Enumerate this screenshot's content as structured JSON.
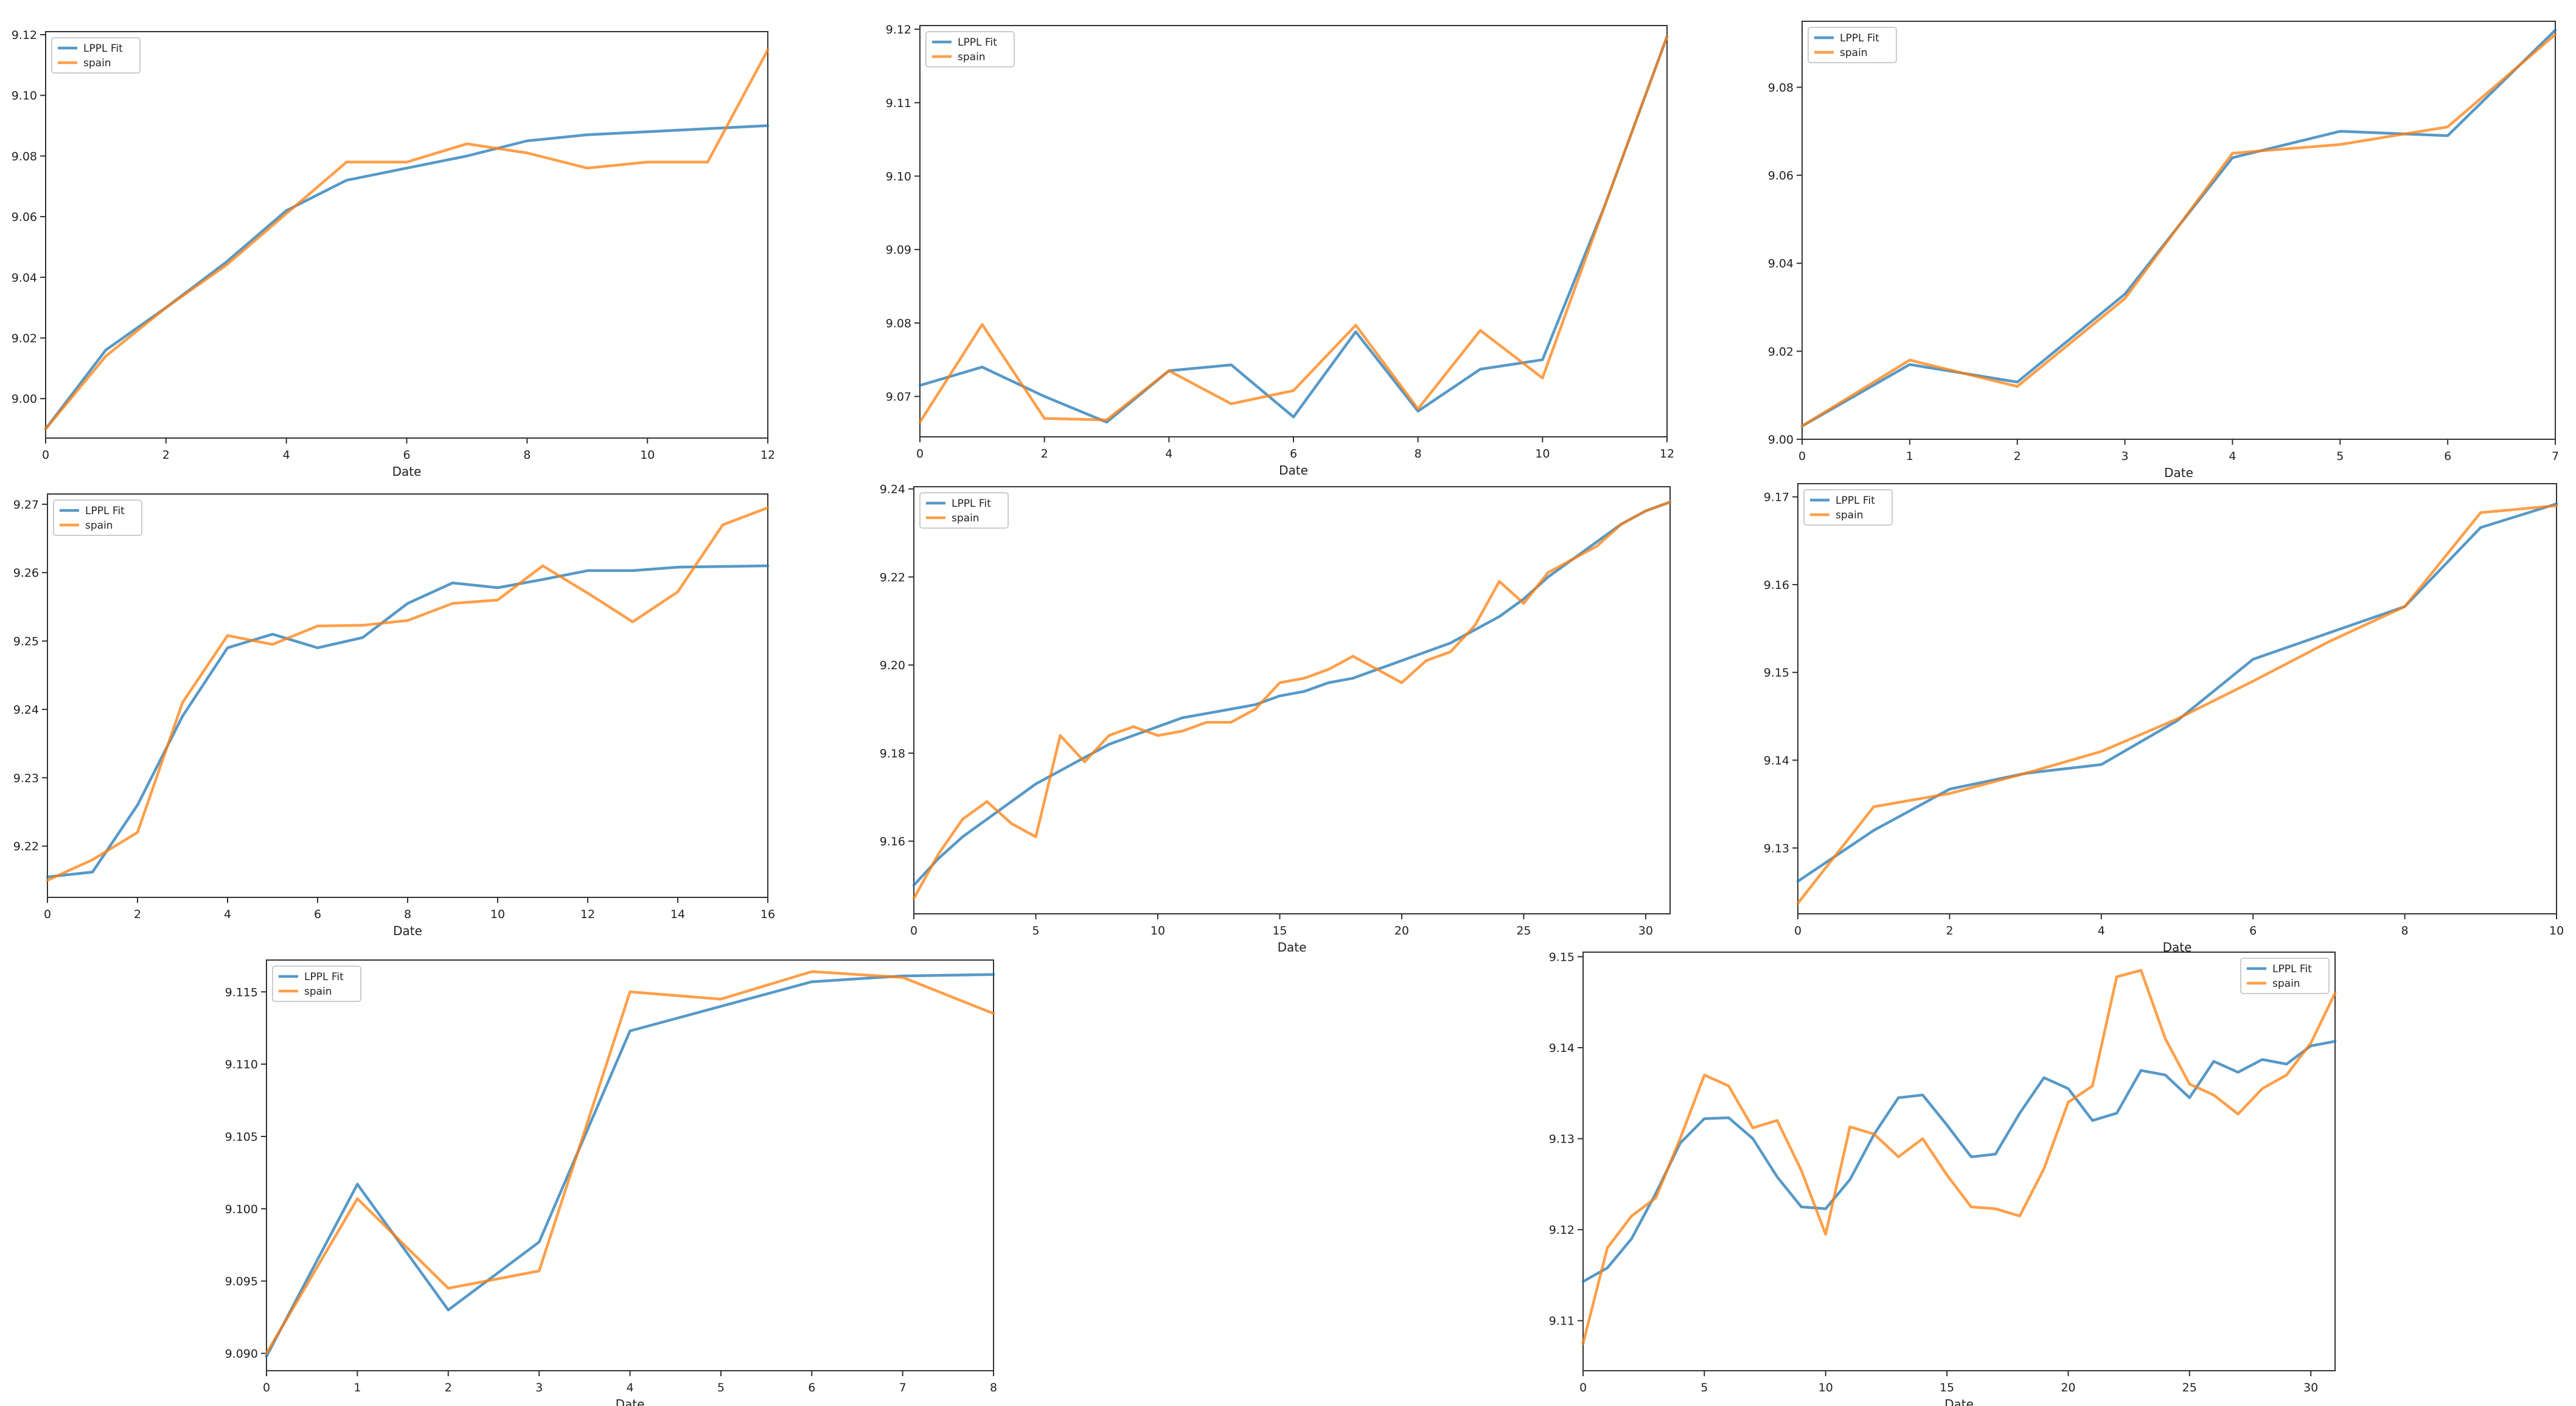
{
  "series_style": {
    "fit_color": "#1f77b4",
    "data_color": "#ff7f0e"
  },
  "chart_data": [
    {
      "type": "line",
      "xlabel": "Date",
      "xlim": [
        0,
        12
      ],
      "ylim": [
        8.987,
        9.121
      ],
      "xticks": [
        0,
        2,
        4,
        6,
        8,
        10,
        12
      ],
      "yticks": [
        9.0,
        9.02,
        9.04,
        9.06,
        9.08,
        9.1,
        9.12
      ],
      "ytick_labels": [
        "9.00",
        "9.02",
        "9.04",
        "9.06",
        "9.08",
        "9.10",
        "9.12"
      ],
      "legend_position": "top-left",
      "series": [
        {
          "name": "LPPL Fit",
          "x": [
            0,
            1,
            2,
            3,
            4,
            5,
            6,
            7,
            8,
            9,
            10,
            11,
            12
          ],
          "y": [
            8.99,
            9.016,
            9.03,
            9.045,
            9.062,
            9.072,
            9.076,
            9.08,
            9.085,
            9.087,
            9.088,
            9.089,
            9.09
          ]
        },
        {
          "name": "spain",
          "x": [
            0,
            1,
            2,
            3,
            4,
            5,
            6,
            7,
            8,
            9,
            10,
            11,
            12
          ],
          "y": [
            8.99,
            9.014,
            9.03,
            9.044,
            9.061,
            9.078,
            9.078,
            9.084,
            9.081,
            9.076,
            9.078,
            9.078,
            9.115
          ]
        }
      ]
    },
    {
      "type": "line",
      "xlabel": "Date",
      "xlim": [
        0,
        12
      ],
      "ylim": [
        9.0645,
        9.1205
      ],
      "xticks": [
        0,
        2,
        4,
        6,
        8,
        10,
        12
      ],
      "yticks": [
        9.07,
        9.08,
        9.09,
        9.1,
        9.11,
        9.12
      ],
      "ytick_labels": [
        "9.07",
        "9.08",
        "9.09",
        "9.10",
        "9.11",
        "9.12"
      ],
      "legend_position": "top-left",
      "series": [
        {
          "name": "LPPL Fit",
          "x": [
            0,
            1,
            2,
            3,
            4,
            5,
            6,
            7,
            8,
            9,
            10,
            11,
            12
          ],
          "y": [
            9.0715,
            9.074,
            9.07,
            9.0665,
            9.0735,
            9.0743,
            9.0672,
            9.0788,
            9.068,
            9.0737,
            9.075,
            9.096,
            9.119
          ]
        },
        {
          "name": "spain",
          "x": [
            0,
            1,
            2,
            3,
            4,
            5,
            6,
            7,
            8,
            9,
            10,
            11,
            12
          ],
          "y": [
            9.0665,
            9.0798,
            9.067,
            9.0668,
            9.0735,
            9.069,
            9.0708,
            9.0797,
            9.0683,
            9.079,
            9.0725,
            9.096,
            9.119
          ]
        }
      ]
    },
    {
      "type": "line",
      "xlabel": "Date",
      "xlim": [
        0,
        7
      ],
      "ylim": [
        9.0,
        9.095
      ],
      "xticks": [
        0,
        1,
        2,
        3,
        4,
        5,
        6,
        7
      ],
      "yticks": [
        9.0,
        9.02,
        9.04,
        9.06,
        9.08
      ],
      "ytick_labels": [
        "9.00",
        "9.02",
        "9.04",
        "9.06",
        "9.08"
      ],
      "legend_position": "top-left",
      "series": [
        {
          "name": "LPPL Fit",
          "x": [
            0,
            1,
            2,
            3,
            4,
            5,
            6,
            7
          ],
          "y": [
            9.003,
            9.017,
            9.013,
            9.033,
            9.064,
            9.07,
            9.069,
            9.093
          ]
        },
        {
          "name": "spain",
          "x": [
            0,
            1,
            2,
            3,
            4,
            5,
            6,
            7
          ],
          "y": [
            9.003,
            9.018,
            9.012,
            9.032,
            9.065,
            9.067,
            9.071,
            9.092
          ]
        }
      ]
    },
    {
      "type": "line",
      "xlabel": "Date",
      "xlim": [
        0,
        16
      ],
      "ylim": [
        9.2125,
        9.2715
      ],
      "xticks": [
        0,
        2,
        4,
        6,
        8,
        10,
        12,
        14,
        16
      ],
      "yticks": [
        9.22,
        9.23,
        9.24,
        9.25,
        9.26,
        9.27
      ],
      "ytick_labels": [
        "9.22",
        "9.23",
        "9.24",
        "9.25",
        "9.26",
        "9.27"
      ],
      "legend_position": "top-left",
      "series": [
        {
          "name": "LPPL Fit",
          "x": [
            0,
            1,
            2,
            3,
            4,
            5,
            6,
            7,
            8,
            9,
            10,
            11,
            12,
            13,
            14,
            15,
            16
          ],
          "y": [
            9.2155,
            9.2162,
            9.226,
            9.239,
            9.249,
            9.251,
            9.249,
            9.2505,
            9.2555,
            9.2585,
            9.2578,
            9.259,
            9.2603,
            9.2603,
            9.2608,
            9.2609,
            9.261
          ]
        },
        {
          "name": "spain",
          "x": [
            0,
            1,
            2,
            3,
            4,
            5,
            6,
            7,
            8,
            9,
            10,
            11,
            12,
            13,
            14,
            15,
            16
          ],
          "y": [
            9.215,
            9.218,
            9.222,
            9.241,
            9.2508,
            9.2495,
            9.2522,
            9.2523,
            9.253,
            9.2555,
            9.256,
            9.261,
            9.257,
            9.2528,
            9.2572,
            9.267,
            9.2695
          ]
        }
      ]
    },
    {
      "type": "line",
      "xlabel": "Date",
      "xlim": [
        0,
        31
      ],
      "ylim": [
        9.1435,
        9.2405
      ],
      "xticks": [
        0,
        5,
        10,
        15,
        20,
        25,
        30
      ],
      "yticks": [
        9.16,
        9.18,
        9.2,
        9.22,
        9.24
      ],
      "ytick_labels": [
        "9.16",
        "9.18",
        "9.20",
        "9.22",
        "9.24"
      ],
      "legend_position": "top-left",
      "series": [
        {
          "name": "LPPL Fit",
          "x": [
            0,
            1,
            2,
            3,
            4,
            5,
            6,
            7,
            8,
            9,
            10,
            11,
            12,
            13,
            14,
            15,
            16,
            17,
            18,
            19,
            20,
            21,
            22,
            23,
            24,
            25,
            26,
            27,
            28,
            29,
            30,
            31
          ],
          "y": [
            9.15,
            9.156,
            9.161,
            9.165,
            9.169,
            9.173,
            9.176,
            9.179,
            9.182,
            9.184,
            9.186,
            9.188,
            9.189,
            9.19,
            9.191,
            9.193,
            9.194,
            9.196,
            9.197,
            9.199,
            9.201,
            9.203,
            9.205,
            9.208,
            9.211,
            9.215,
            9.22,
            9.224,
            9.228,
            9.232,
            9.235,
            9.237
          ]
        },
        {
          "name": "spain",
          "x": [
            0,
            1,
            2,
            3,
            4,
            5,
            6,
            7,
            8,
            9,
            10,
            11,
            12,
            13,
            14,
            15,
            16,
            17,
            18,
            19,
            20,
            21,
            22,
            23,
            24,
            25,
            26,
            27,
            28,
            29,
            30,
            31
          ],
          "y": [
            9.147,
            9.157,
            9.165,
            9.169,
            9.164,
            9.161,
            9.184,
            9.178,
            9.184,
            9.186,
            9.184,
            9.185,
            9.187,
            9.187,
            9.19,
            9.196,
            9.197,
            9.199,
            9.202,
            9.199,
            9.196,
            9.201,
            9.203,
            9.209,
            9.219,
            9.214,
            9.221,
            9.224,
            9.227,
            9.232,
            9.235,
            9.237
          ]
        }
      ]
    },
    {
      "type": "line",
      "xlabel": "Date",
      "xlim": [
        0,
        10
      ],
      "ylim": [
        9.1225,
        9.1715
      ],
      "xticks": [
        0,
        2,
        4,
        6,
        8,
        10
      ],
      "yticks": [
        9.13,
        9.14,
        9.15,
        9.16,
        9.17
      ],
      "ytick_labels": [
        "9.13",
        "9.14",
        "9.15",
        "9.16",
        "9.17"
      ],
      "legend_position": "top-left",
      "series": [
        {
          "name": "LPPL Fit",
          "x": [
            0,
            1,
            2,
            3,
            4,
            5,
            6,
            7,
            8,
            9,
            10
          ],
          "y": [
            9.1262,
            9.132,
            9.1367,
            9.1385,
            9.1395,
            9.1445,
            9.1515,
            9.1545,
            9.1575,
            9.1665,
            9.1692
          ]
        },
        {
          "name": "spain",
          "x": [
            0,
            1,
            2,
            3,
            4,
            5,
            6,
            7,
            8,
            9,
            10
          ],
          "y": [
            9.1237,
            9.1347,
            9.1362,
            9.1385,
            9.141,
            9.1447,
            9.149,
            9.1535,
            9.1575,
            9.1682,
            9.169
          ]
        }
      ]
    },
    {
      "type": "line",
      "xlabel": "Date",
      "xlim": [
        0,
        8
      ],
      "ylim": [
        9.0888,
        9.1172
      ],
      "xticks": [
        0,
        1,
        2,
        3,
        4,
        5,
        6,
        7,
        8
      ],
      "yticks": [
        9.09,
        9.095,
        9.1,
        9.105,
        9.11,
        9.115
      ],
      "ytick_labels": [
        "9.090",
        "9.095",
        "9.100",
        "9.105",
        "9.110",
        "9.115"
      ],
      "legend_position": "top-left",
      "series": [
        {
          "name": "LPPL Fit",
          "x": [
            0,
            1,
            2,
            3,
            4,
            5,
            6,
            7,
            8
          ],
          "y": [
            9.0898,
            9.1017,
            9.093,
            9.0977,
            9.1123,
            9.114,
            9.1157,
            9.1161,
            9.1162
          ]
        },
        {
          "name": "spain",
          "x": [
            0,
            1,
            2,
            3,
            4,
            5,
            6,
            7,
            8
          ],
          "y": [
            9.09,
            9.1007,
            9.0945,
            9.0957,
            9.115,
            9.1145,
            9.1164,
            9.116,
            9.1135
          ]
        }
      ]
    },
    {
      "type": "line",
      "xlabel": "Date",
      "xlim": [
        0,
        31
      ],
      "ylim": [
        9.1045,
        9.1505
      ],
      "xticks": [
        0,
        5,
        10,
        15,
        20,
        25,
        30
      ],
      "yticks": [
        9.11,
        9.12,
        9.13,
        9.14,
        9.15
      ],
      "ytick_labels": [
        "9.11",
        "9.12",
        "9.13",
        "9.14",
        "9.15"
      ],
      "legend_position": "top-right",
      "series": [
        {
          "name": "LPPL Fit",
          "x": [
            0,
            1,
            2,
            3,
            4,
            5,
            6,
            7,
            8,
            9,
            10,
            11,
            12,
            13,
            14,
            15,
            16,
            17,
            18,
            19,
            20,
            21,
            22,
            23,
            24,
            25,
            26,
            27,
            28,
            29,
            30,
            31
          ],
          "y": [
            9.1143,
            9.1158,
            9.119,
            9.124,
            9.1295,
            9.1322,
            9.1323,
            9.13,
            9.1258,
            9.1225,
            9.1223,
            9.1255,
            9.1305,
            9.1345,
            9.1348,
            9.1315,
            9.128,
            9.1283,
            9.1328,
            9.1367,
            9.1355,
            9.132,
            9.1328,
            9.1375,
            9.137,
            9.1345,
            9.1385,
            9.1373,
            9.1387,
            9.1382,
            9.1402,
            9.1407
          ]
        },
        {
          "name": "spain",
          "x": [
            0,
            1,
            2,
            3,
            4,
            5,
            6,
            7,
            8,
            9,
            10,
            11,
            12,
            13,
            14,
            15,
            16,
            17,
            18,
            19,
            20,
            21,
            22,
            23,
            24,
            25,
            26,
            27,
            28,
            29,
            30,
            31
          ],
          "y": [
            9.1075,
            9.118,
            9.1215,
            9.1235,
            9.13,
            9.137,
            9.1358,
            9.1312,
            9.132,
            9.1265,
            9.1195,
            9.1313,
            9.1305,
            9.128,
            9.13,
            9.126,
            9.1225,
            9.1223,
            9.1215,
            9.1267,
            9.134,
            9.1358,
            9.1478,
            9.1485,
            9.141,
            9.136,
            9.1348,
            9.1327,
            9.1355,
            9.137,
            9.1405,
            9.146
          ]
        }
      ]
    }
  ]
}
